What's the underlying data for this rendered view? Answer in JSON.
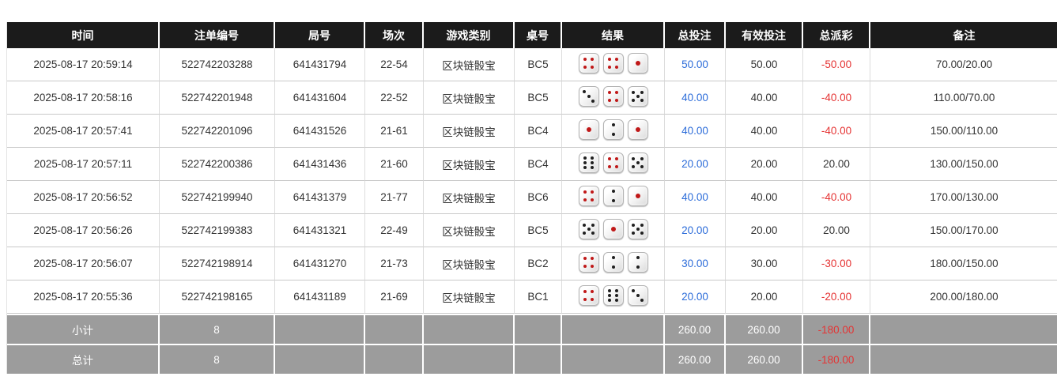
{
  "colors": {
    "header_bg": "#1b1b1b",
    "header_text": "#ffffff",
    "row_text": "#333333",
    "bet_blue": "#2c6cd9",
    "loss_red": "#e53333",
    "summary_bg": "#9c9c9c",
    "summary_text": "#ffffff",
    "pip_red": "#c01818",
    "pip_black": "#1f1f1f"
  },
  "table": {
    "headers": [
      "时间",
      "注单编号",
      "局号",
      "场次",
      "游戏类别",
      "桌号",
      "结果",
      "总投注",
      "有效投注",
      "总派彩",
      "备注"
    ],
    "rows": [
      {
        "time": "2025-08-17 20:59:14",
        "bet_id": "522742203288",
        "round_no": "641431794",
        "session": "22-54",
        "game": "区块链骰宝",
        "table_no": "BC5",
        "dice": [
          4,
          4,
          1
        ],
        "total_bet": "50.00",
        "valid_bet": "50.00",
        "payout": "-50.00",
        "remark": "70.00/20.00"
      },
      {
        "time": "2025-08-17 20:58:16",
        "bet_id": "522742201948",
        "round_no": "641431604",
        "session": "22-52",
        "game": "区块链骰宝",
        "table_no": "BC5",
        "dice": [
          3,
          4,
          5
        ],
        "total_bet": "40.00",
        "valid_bet": "40.00",
        "payout": "-40.00",
        "remark": "110.00/70.00"
      },
      {
        "time": "2025-08-17 20:57:41",
        "bet_id": "522742201096",
        "round_no": "641431526",
        "session": "21-61",
        "game": "区块链骰宝",
        "table_no": "BC4",
        "dice": [
          1,
          2,
          1
        ],
        "total_bet": "40.00",
        "valid_bet": "40.00",
        "payout": "-40.00",
        "remark": "150.00/110.00"
      },
      {
        "time": "2025-08-17 20:57:11",
        "bet_id": "522742200386",
        "round_no": "641431436",
        "session": "21-60",
        "game": "区块链骰宝",
        "table_no": "BC4",
        "dice": [
          6,
          4,
          5
        ],
        "total_bet": "20.00",
        "valid_bet": "20.00",
        "payout": "20.00",
        "remark": "130.00/150.00"
      },
      {
        "time": "2025-08-17 20:56:52",
        "bet_id": "522742199940",
        "round_no": "641431379",
        "session": "21-77",
        "game": "区块链骰宝",
        "table_no": "BC6",
        "dice": [
          4,
          2,
          1
        ],
        "total_bet": "40.00",
        "valid_bet": "40.00",
        "payout": "-40.00",
        "remark": "170.00/130.00"
      },
      {
        "time": "2025-08-17 20:56:26",
        "bet_id": "522742199383",
        "round_no": "641431321",
        "session": "22-49",
        "game": "区块链骰宝",
        "table_no": "BC5",
        "dice": [
          5,
          1,
          5
        ],
        "total_bet": "20.00",
        "valid_bet": "20.00",
        "payout": "20.00",
        "remark": "150.00/170.00"
      },
      {
        "time": "2025-08-17 20:56:07",
        "bet_id": "522742198914",
        "round_no": "641431270",
        "session": "21-73",
        "game": "区块链骰宝",
        "table_no": "BC2",
        "dice": [
          4,
          2,
          2
        ],
        "total_bet": "30.00",
        "valid_bet": "30.00",
        "payout": "-30.00",
        "remark": "180.00/150.00"
      },
      {
        "time": "2025-08-17 20:55:36",
        "bet_id": "522742198165",
        "round_no": "641431189",
        "session": "21-69",
        "game": "区块链骰宝",
        "table_no": "BC1",
        "dice": [
          4,
          6,
          3
        ],
        "total_bet": "20.00",
        "valid_bet": "20.00",
        "payout": "-20.00",
        "remark": "200.00/180.00"
      }
    ],
    "subtotal": {
      "label": "小计",
      "bet_count": "8",
      "total_bet": "260.00",
      "valid_bet": "260.00",
      "payout": "-180.00",
      "remark": ""
    },
    "total": {
      "label": "总计",
      "bet_count": "8",
      "total_bet": "260.00",
      "valid_bet": "260.00",
      "payout": "-180.00",
      "remark": ""
    }
  }
}
